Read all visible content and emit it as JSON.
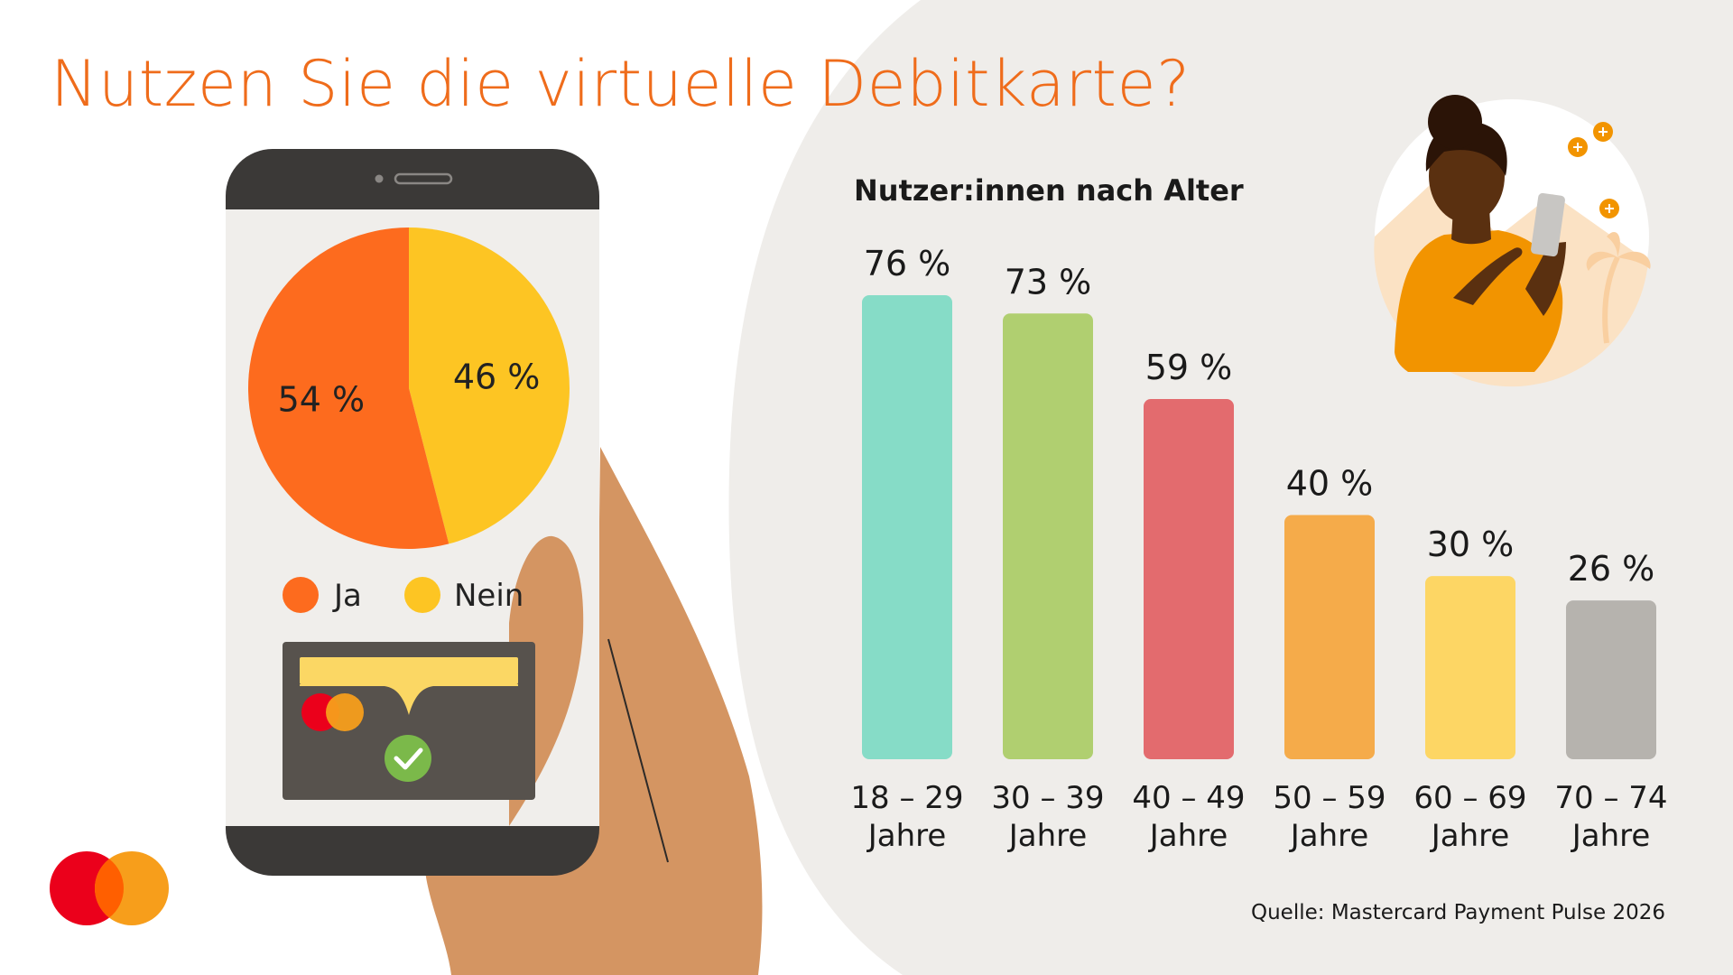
{
  "title": "Nutzen Sie die virtuelle Debitkarte?",
  "source": "Quelle: Mastercard Payment Pulse 2026",
  "colors": {
    "accent": "#ef6c1b",
    "background_shape": "#efedea",
    "phone_frame": "#3b3937",
    "hand": "#d49562",
    "wallet": "#57524d"
  },
  "icons": [
    "mastercard-logo",
    "check-icon",
    "wallet-icon",
    "woman-with-phone-illustration"
  ],
  "chart_data": [
    {
      "type": "pie",
      "categories": [
        "Ja",
        "Nein"
      ],
      "values": [
        54,
        46
      ],
      "value_labels": [
        "54 %",
        "46 %"
      ],
      "colors": [
        "#fd6b1e",
        "#fdc523"
      ],
      "legend": [
        "Ja",
        "Nein"
      ],
      "legend_position": "bottom"
    },
    {
      "type": "bar",
      "title": "Nutzer:innen nach Alter",
      "categories": [
        [
          "18 – 29",
          "Jahre"
        ],
        [
          "30 – 39",
          "Jahre"
        ],
        [
          "40 – 49",
          "Jahre"
        ],
        [
          "50 – 59",
          "Jahre"
        ],
        [
          "60 – 69",
          "Jahre"
        ],
        [
          "70 – 74",
          "Jahre"
        ]
      ],
      "values": [
        76,
        73,
        59,
        40,
        30,
        26
      ],
      "value_labels": [
        "76 %",
        "73 %",
        "59 %",
        "40 %",
        "30 %",
        "26 %"
      ],
      "colors": [
        "#86dcc7",
        "#b0cf70",
        "#e36b6e",
        "#f5ab4a",
        "#fdd664",
        "#b6b3ae"
      ],
      "ylim": [
        0,
        76
      ],
      "grid": false
    }
  ]
}
